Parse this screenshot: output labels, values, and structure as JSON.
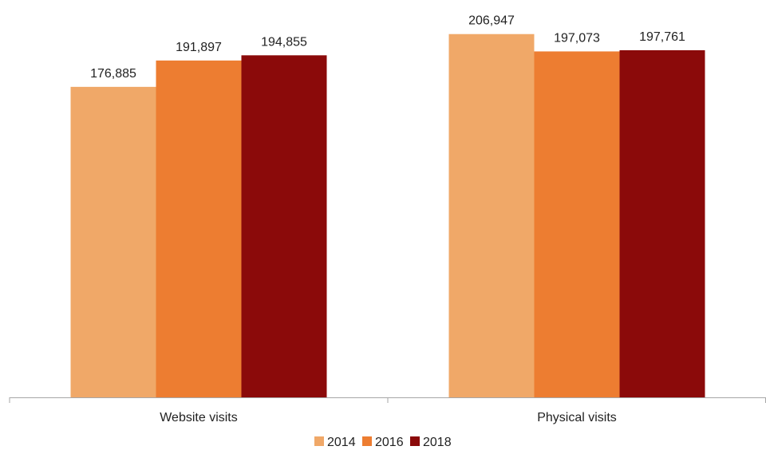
{
  "chart_data": {
    "type": "bar",
    "categories": [
      "Website visits",
      "Physical visits"
    ],
    "series": [
      {
        "name": "2014",
        "values": [
          176885,
          206947
        ],
        "labels": [
          "176,885",
          "206,947"
        ],
        "color": "#F0A868"
      },
      {
        "name": "2016",
        "values": [
          191897,
          197073
        ],
        "labels": [
          "191,897",
          "197,073"
        ],
        "color": "#ED7D31"
      },
      {
        "name": "2018",
        "values": [
          194855,
          197761
        ],
        "labels": [
          "194,855",
          "197,761"
        ],
        "color": "#8B0A0A"
      }
    ],
    "title": "",
    "xlabel": "",
    "ylabel": "",
    "ylim": [
      0,
      215000
    ],
    "grid": false,
    "legend": "bottom",
    "axis_color": "#A6A6A6"
  }
}
